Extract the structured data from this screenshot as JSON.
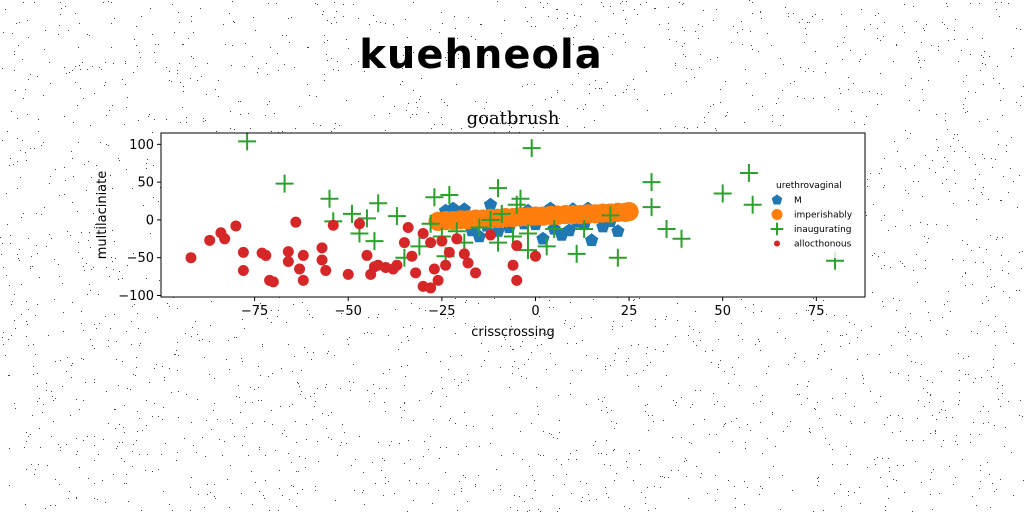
{
  "figure": {
    "suptitle": "kuehneola"
  },
  "chart_data": {
    "type": "scatter",
    "title": "goatbrush",
    "xlabel": "crisscrossing",
    "ylabel": "multilaciniate",
    "xlim": [
      -100,
      88
    ],
    "ylim": [
      -102,
      115
    ],
    "xticks": [
      -75,
      -50,
      -25,
      0,
      25,
      50,
      75
    ],
    "yticks": [
      -100,
      -50,
      0,
      50,
      100
    ],
    "grid": false,
    "legend": {
      "title": "urethrovaginal",
      "placement": "center-right"
    },
    "series": [
      {
        "name": "M",
        "marker": "pentagon",
        "color": "#1f77b4",
        "points": [
          [
            -24,
            12
          ],
          [
            -22,
            15
          ],
          [
            -20,
            8
          ],
          [
            -19,
            14
          ],
          [
            -17,
            -14
          ],
          [
            -15,
            -22
          ],
          [
            -13,
            -8
          ],
          [
            -12,
            20
          ],
          [
            -10,
            -15
          ],
          [
            -8,
            5
          ],
          [
            -7,
            -10
          ],
          [
            -5,
            8
          ],
          [
            -3,
            -5
          ],
          [
            -2,
            12
          ],
          [
            0,
            -6
          ],
          [
            2,
            -25
          ],
          [
            3,
            5
          ],
          [
            4,
            15
          ],
          [
            5,
            -12
          ],
          [
            6,
            10
          ],
          [
            7,
            -20
          ],
          [
            8,
            3
          ],
          [
            9,
            -14
          ],
          [
            10,
            14
          ],
          [
            11,
            -3
          ],
          [
            12,
            9
          ],
          [
            13,
            -6
          ],
          [
            14,
            15
          ],
          [
            15,
            -27
          ],
          [
            16,
            6
          ],
          [
            18,
            -9
          ],
          [
            20,
            -2
          ],
          [
            21,
            7
          ],
          [
            22,
            -15
          ]
        ]
      },
      {
        "name": "imperishably",
        "marker": "circle",
        "color": "#ff7f0e",
        "points": [
          [
            -26,
            -2
          ],
          [
            -24,
            -1
          ],
          [
            -22,
            -1
          ],
          [
            -20,
            0
          ],
          [
            -18,
            0
          ],
          [
            -16,
            1
          ],
          [
            -14,
            1
          ],
          [
            -12,
            2
          ],
          [
            -10,
            2
          ],
          [
            -8,
            3
          ],
          [
            -6,
            3
          ],
          [
            -4,
            4
          ],
          [
            -2,
            4
          ],
          [
            0,
            5
          ],
          [
            2,
            5
          ],
          [
            4,
            6
          ],
          [
            6,
            6
          ],
          [
            8,
            7
          ],
          [
            10,
            7
          ],
          [
            12,
            7
          ],
          [
            14,
            8
          ],
          [
            16,
            8
          ],
          [
            18,
            9
          ],
          [
            20,
            9
          ],
          [
            22,
            10
          ],
          [
            24,
            10
          ],
          [
            25,
            11
          ]
        ]
      },
      {
        "name": "inaugurating",
        "marker": "plus",
        "color": "#2ca02c",
        "points": [
          [
            -77,
            104
          ],
          [
            -67,
            48
          ],
          [
            -55,
            28
          ],
          [
            -54,
            -2
          ],
          [
            -49,
            8
          ],
          [
            -47,
            -18
          ],
          [
            -45,
            2
          ],
          [
            -43,
            -28
          ],
          [
            -42,
            22
          ],
          [
            -37,
            5
          ],
          [
            -35,
            -50
          ],
          [
            -31,
            -35
          ],
          [
            -28,
            -5
          ],
          [
            -27,
            30
          ],
          [
            -25,
            -22
          ],
          [
            -24,
            -48
          ],
          [
            -23,
            33
          ],
          [
            -21,
            -15
          ],
          [
            -19,
            -30
          ],
          [
            -15,
            -10
          ],
          [
            -12,
            0
          ],
          [
            -10,
            42
          ],
          [
            -10,
            -30
          ],
          [
            -9,
            8
          ],
          [
            -6,
            -22
          ],
          [
            -5,
            20
          ],
          [
            -4,
            28
          ],
          [
            -2,
            -18
          ],
          [
            -2,
            -40
          ],
          [
            -1,
            95
          ],
          [
            3,
            -35
          ],
          [
            5,
            -12
          ],
          [
            13,
            -12
          ],
          [
            11,
            -45
          ],
          [
            20,
            6
          ],
          [
            22,
            -50
          ],
          [
            31,
            50
          ],
          [
            31,
            17
          ],
          [
            35,
            -12
          ],
          [
            39,
            -25
          ],
          [
            50,
            35
          ],
          [
            57,
            62
          ],
          [
            58,
            20
          ],
          [
            80,
            -54
          ]
        ]
      },
      {
        "name": "allocthonous",
        "marker": "circle",
        "color": "#d62728",
        "points": [
          [
            -92,
            -50
          ],
          [
            -87,
            -27
          ],
          [
            -84,
            -17
          ],
          [
            -83,
            -25
          ],
          [
            -80,
            -8
          ],
          [
            -78,
            -43
          ],
          [
            -78,
            -67
          ],
          [
            -73,
            -44
          ],
          [
            -72,
            -47
          ],
          [
            -71,
            -80
          ],
          [
            -70,
            -82
          ],
          [
            -66,
            -42
          ],
          [
            -66,
            -55
          ],
          [
            -64,
            -3
          ],
          [
            -63,
            -65
          ],
          [
            -62,
            -80
          ],
          [
            -62,
            -47
          ],
          [
            -57,
            -37
          ],
          [
            -57,
            -53
          ],
          [
            -56,
            -67
          ],
          [
            -54,
            -7
          ],
          [
            -50,
            -72
          ],
          [
            -47,
            -5
          ],
          [
            -45,
            -47
          ],
          [
            -44,
            -72
          ],
          [
            -43,
            -62
          ],
          [
            -42,
            -60
          ],
          [
            -40,
            -63
          ],
          [
            -38,
            -65
          ],
          [
            -37,
            -60
          ],
          [
            -35,
            -30
          ],
          [
            -34,
            -10
          ],
          [
            -33,
            -48
          ],
          [
            -32,
            -70
          ],
          [
            -30,
            -18
          ],
          [
            -30,
            -88
          ],
          [
            -28,
            -90
          ],
          [
            -28,
            -30
          ],
          [
            -27,
            -65
          ],
          [
            -26,
            -80
          ],
          [
            -25,
            -28
          ],
          [
            -24,
            -60
          ],
          [
            -23,
            -43
          ],
          [
            -21,
            -25
          ],
          [
            -19,
            -45
          ],
          [
            -18,
            -57
          ],
          [
            -16,
            -70
          ],
          [
            -12,
            -20
          ],
          [
            -6,
            -60
          ],
          [
            -5,
            -34
          ],
          [
            -5,
            -80
          ],
          [
            0,
            -48
          ]
        ]
      }
    ]
  }
}
